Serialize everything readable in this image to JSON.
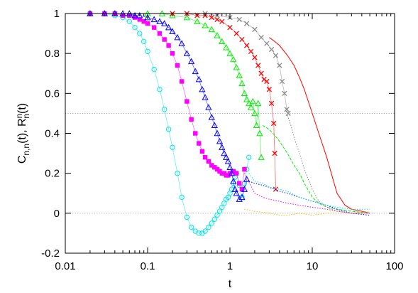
{
  "chart_data": {
    "type": "scatter",
    "title": "",
    "xlabel": "t",
    "ylabel": "C_{n,n}(t), R^n_n(t)",
    "xscale": "log",
    "xlim": [
      0.01,
      100
    ],
    "ylim": [
      -0.2,
      1
    ],
    "xticks": [
      {
        "value": 0.01,
        "label": "0.01"
      },
      {
        "value": 0.1,
        "label": "0.1"
      },
      {
        "value": 1,
        "label": "1"
      },
      {
        "value": 10,
        "label": "10"
      },
      {
        "value": 100,
        "label": "100"
      }
    ],
    "yticks": [
      {
        "value": -0.2,
        "label": "-0.2"
      },
      {
        "value": 0,
        "label": "0"
      },
      {
        "value": 0.2,
        "label": "0.2"
      },
      {
        "value": 0.4,
        "label": "0.4"
      },
      {
        "value": 0.6,
        "label": "0.6"
      },
      {
        "value": 0.8,
        "label": "0.8"
      },
      {
        "value": 1,
        "label": "1"
      }
    ],
    "grid": false,
    "legend": "none",
    "reference_lines": [
      {
        "y": 0.5,
        "style": "dotted",
        "color": "#999999"
      },
      {
        "y": 0,
        "style": "dotted",
        "color": "#999999"
      }
    ],
    "series": [
      {
        "kind": "points",
        "marker": "circle-open",
        "color": "#00e5e5",
        "x": [
          0.02,
          0.03,
          0.04,
          0.05,
          0.06,
          0.07,
          0.08,
          0.09,
          0.1,
          0.12,
          0.14,
          0.16,
          0.18,
          0.2,
          0.23,
          0.26,
          0.3,
          0.34,
          0.38,
          0.42,
          0.46,
          0.5,
          0.55,
          0.6,
          0.65,
          0.7,
          0.75,
          0.8,
          0.85,
          0.9,
          0.95,
          1.0,
          1.05,
          1.1,
          1.15,
          1.2,
          1.3,
          1.4,
          1.5,
          1.6,
          1.7
        ],
        "y": [
          1.0,
          1.0,
          0.99,
          0.98,
          0.96,
          0.93,
          0.9,
          0.86,
          0.81,
          0.72,
          0.62,
          0.52,
          0.42,
          0.33,
          0.2,
          0.08,
          -0.02,
          -0.07,
          -0.09,
          -0.1,
          -0.1,
          -0.09,
          -0.07,
          -0.05,
          -0.03,
          -0.01,
          0.01,
          0.03,
          0.05,
          0.07,
          0.08,
          0.1,
          0.12,
          0.15,
          0.18,
          0.2,
          0.14,
          0.08,
          0.15,
          0.22,
          0.28
        ]
      },
      {
        "kind": "points",
        "marker": "square-filled",
        "color": "#ff00ff",
        "x": [
          0.02,
          0.03,
          0.04,
          0.05,
          0.06,
          0.07,
          0.08,
          0.09,
          0.1,
          0.12,
          0.14,
          0.16,
          0.18,
          0.2,
          0.23,
          0.26,
          0.3,
          0.34,
          0.38,
          0.42,
          0.46,
          0.5,
          0.55,
          0.6,
          0.65,
          0.7,
          0.75,
          0.8,
          0.85,
          0.9,
          0.95,
          1.0,
          1.1,
          1.2,
          1.3,
          1.4,
          1.5
        ],
        "y": [
          1.0,
          1.0,
          1.0,
          0.99,
          0.99,
          0.98,
          0.97,
          0.96,
          0.95,
          0.93,
          0.9,
          0.87,
          0.84,
          0.8,
          0.74,
          0.66,
          0.56,
          0.47,
          0.4,
          0.35,
          0.31,
          0.28,
          0.26,
          0.24,
          0.23,
          0.22,
          0.21,
          0.2,
          0.2,
          0.19,
          0.19,
          0.2,
          0.21,
          0.2,
          0.15,
          0.12,
          0.22
        ]
      },
      {
        "kind": "points",
        "marker": "triangle-open",
        "color": "#0000ff",
        "x": [
          0.02,
          0.03,
          0.04,
          0.05,
          0.06,
          0.07,
          0.08,
          0.1,
          0.12,
          0.14,
          0.16,
          0.18,
          0.2,
          0.23,
          0.26,
          0.3,
          0.34,
          0.38,
          0.42,
          0.46,
          0.5,
          0.55,
          0.6,
          0.65,
          0.7,
          0.75,
          0.8,
          0.85,
          0.9,
          0.95,
          1.0,
          1.05,
          1.1,
          1.15,
          1.2,
          1.3,
          1.4,
          1.5,
          1.6
        ],
        "y": [
          1.0,
          1.0,
          1.0,
          1.0,
          1.0,
          0.99,
          0.99,
          0.98,
          0.97,
          0.96,
          0.95,
          0.93,
          0.91,
          0.88,
          0.85,
          0.8,
          0.76,
          0.71,
          0.67,
          0.62,
          0.58,
          0.53,
          0.48,
          0.44,
          0.4,
          0.36,
          0.33,
          0.3,
          0.28,
          0.26,
          0.23,
          0.2,
          0.16,
          0.12,
          0.1,
          0.07,
          0.08,
          0.12,
          0.17
        ]
      },
      {
        "kind": "points",
        "marker": "triangle-open",
        "color": "#00ee00",
        "x": [
          0.1,
          0.15,
          0.2,
          0.3,
          0.4,
          0.5,
          0.6,
          0.7,
          0.8,
          0.9,
          1.0,
          1.1,
          1.2,
          1.3,
          1.4,
          1.5,
          1.6,
          1.7,
          1.8,
          1.9,
          2.0,
          2.1,
          2.2,
          2.3,
          2.4
        ],
        "y": [
          1.0,
          1.0,
          0.99,
          0.98,
          0.96,
          0.94,
          0.92,
          0.89,
          0.86,
          0.83,
          0.8,
          0.77,
          0.73,
          0.69,
          0.65,
          0.6,
          0.57,
          0.55,
          0.53,
          0.56,
          0.5,
          0.44,
          0.55,
          0.4,
          0.28
        ]
      },
      {
        "kind": "points",
        "marker": "cross",
        "color": "#ff0000",
        "x": [
          0.2,
          0.3,
          0.4,
          0.5,
          0.6,
          0.7,
          0.8,
          1.0,
          1.2,
          1.4,
          1.6,
          1.8,
          2.0,
          2.2,
          2.4,
          2.6,
          2.8,
          3.0,
          3.2,
          3.4,
          3.5,
          3.6
        ],
        "y": [
          1.0,
          1.0,
          0.99,
          0.99,
          0.98,
          0.97,
          0.96,
          0.93,
          0.9,
          0.87,
          0.84,
          0.81,
          0.78,
          0.74,
          0.7,
          0.67,
          0.66,
          0.62,
          0.55,
          0.45,
          0.3,
          0.12
        ]
      },
      {
        "kind": "points",
        "marker": "cross",
        "color": "#888888",
        "x": [
          0.5,
          0.7,
          1.0,
          1.3,
          1.6,
          2.0,
          2.4,
          2.8,
          3.2,
          3.6,
          4.0,
          4.3,
          4.6,
          4.9,
          5.1
        ],
        "y": [
          1.0,
          0.99,
          0.98,
          0.97,
          0.95,
          0.92,
          0.88,
          0.85,
          0.82,
          0.79,
          0.74,
          0.66,
          0.6,
          0.52,
          0.5
        ]
      },
      {
        "kind": "line",
        "style": "solid",
        "color": "#ff0000",
        "x": [
          3.0,
          3.5,
          4.0,
          5.0,
          6.0,
          7.0,
          8.0,
          10.0,
          12.0,
          15.0,
          20.0,
          25.0,
          30.0,
          40.0,
          50.0
        ],
        "y": [
          0.88,
          0.86,
          0.84,
          0.79,
          0.74,
          0.68,
          0.62,
          0.5,
          0.4,
          0.28,
          0.1,
          0.04,
          0.02,
          0.01,
          0.0
        ]
      },
      {
        "kind": "line",
        "style": "dashed",
        "color": "#00ee00",
        "x": [
          2.5,
          3.0,
          3.5,
          4.0,
          5.0,
          6.0,
          7.0,
          8.0,
          10.0,
          12.0,
          15.0,
          20.0,
          30.0,
          50.0
        ],
        "y": [
          0.44,
          0.42,
          0.39,
          0.36,
          0.3,
          0.24,
          0.2,
          0.15,
          0.08,
          0.05,
          0.03,
          0.02,
          0.01,
          0.0
        ]
      },
      {
        "kind": "line",
        "style": "dotted",
        "color": "#888888",
        "x": [
          5.0,
          5.5,
          6.0,
          7.0,
          8.0,
          10.0,
          12.0,
          15.0,
          20.0,
          30.0,
          50.0
        ],
        "y": [
          0.49,
          0.44,
          0.38,
          0.3,
          0.22,
          0.12,
          0.06,
          0.03,
          0.01,
          0.0,
          0.0
        ]
      },
      {
        "kind": "line",
        "style": "dotted",
        "color": "#0000ff",
        "x": [
          1.7,
          2.0,
          2.5,
          3.0,
          4.0,
          5.0,
          7.0,
          10.0,
          15.0,
          20.0,
          30.0,
          50.0
        ],
        "y": [
          0.16,
          0.15,
          0.14,
          0.13,
          0.11,
          0.1,
          0.08,
          0.06,
          0.04,
          0.02,
          0.0,
          -0.01
        ]
      },
      {
        "kind": "line",
        "style": "dotted",
        "color": "#ff00ff",
        "x": [
          1.5,
          2.0,
          2.5,
          3.0,
          4.0,
          5.0,
          7.0,
          10.0,
          15.0,
          20.0,
          30.0,
          50.0
        ],
        "y": [
          0.2,
          0.1,
          0.08,
          0.07,
          0.06,
          0.05,
          0.04,
          0.03,
          0.02,
          0.01,
          0.0,
          0.0
        ]
      },
      {
        "kind": "line",
        "style": "dotted",
        "color": "#00e5e5",
        "x": [
          1.7,
          2.0,
          2.5,
          3.0,
          4.0,
          5.0,
          7.0,
          10.0,
          15.0,
          20.0,
          30.0,
          50.0
        ],
        "y": [
          0.2,
          0.16,
          0.15,
          0.13,
          0.12,
          0.11,
          0.08,
          0.06,
          0.04,
          0.03,
          0.02,
          0.02
        ]
      },
      {
        "kind": "line",
        "style": "dotted",
        "color": "#e5c400",
        "x": [
          1.5,
          2.0,
          3.0,
          4.0,
          5.0,
          7.0,
          10.0,
          15.0,
          20.0,
          30.0,
          50.0
        ],
        "y": [
          0.02,
          0.01,
          0.0,
          -0.01,
          -0.01,
          0.0,
          -0.01,
          0.0,
          0.0,
          0.0,
          0.01
        ]
      }
    ]
  }
}
